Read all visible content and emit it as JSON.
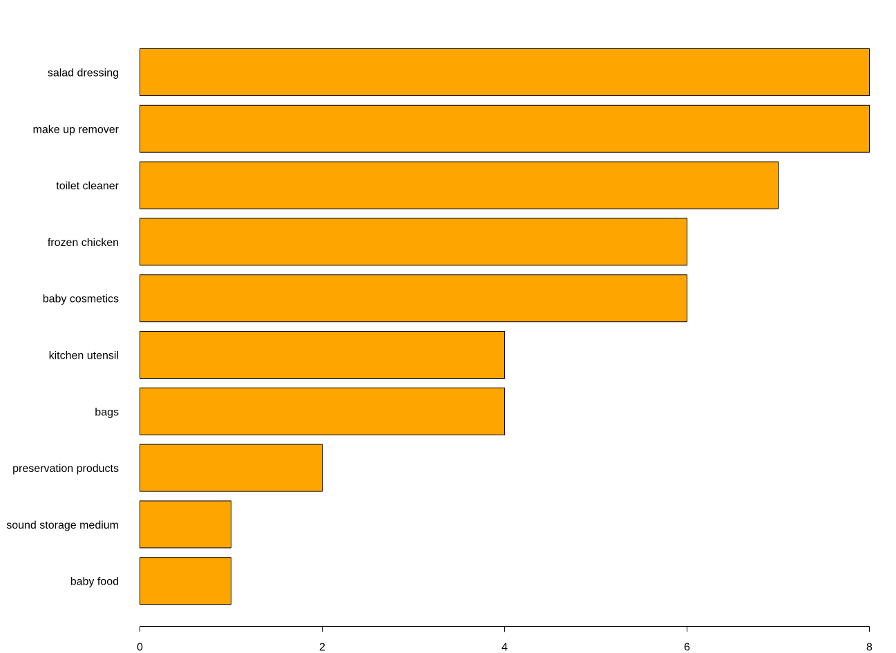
{
  "chart_data": {
    "type": "bar",
    "orientation": "horizontal",
    "title": "",
    "xlabel": "",
    "ylabel": "",
    "categories": [
      "salad dressing",
      "make up remover",
      "toilet cleaner",
      "frozen chicken",
      "baby cosmetics",
      "kitchen utensil",
      "bags",
      "preservation products",
      "sound storage medium",
      "baby food"
    ],
    "values": [
      8,
      8,
      7,
      6,
      6,
      4,
      4,
      2,
      1,
      1
    ],
    "xlim": [
      0,
      8
    ],
    "xticks": [
      0,
      2,
      4,
      6,
      8
    ],
    "bar_color": "#FFA500",
    "bar_border_color": "#000000",
    "grid": false,
    "legend": "none"
  }
}
